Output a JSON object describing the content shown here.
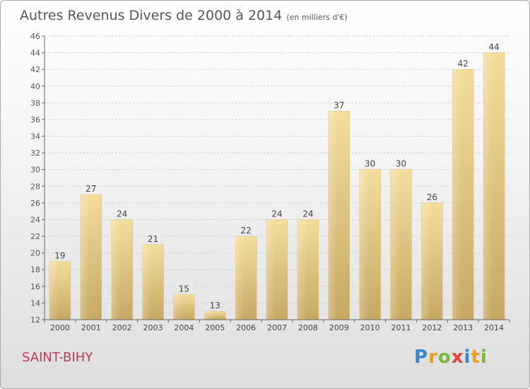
{
  "title": "Autres Revenus Divers de 2000 à 2014",
  "subtitle": "(en milliers d'€)",
  "place_name": "SAINT-BIHY",
  "logo": {
    "text": "Proxiti",
    "colors": [
      "#3a86c8",
      "#e8a020",
      "#7ab83a",
      "#e04040",
      "#3a86c8",
      "#e8a020",
      "#7ab83a"
    ]
  },
  "chart_data": {
    "type": "bar",
    "categories": [
      "2000",
      "2001",
      "2002",
      "2003",
      "2004",
      "2005",
      "2006",
      "2007",
      "2008",
      "2009",
      "2010",
      "2011",
      "2012",
      "2013",
      "2014"
    ],
    "values": [
      19,
      27,
      24,
      21,
      15,
      13,
      22,
      24,
      24,
      37,
      30,
      30,
      26,
      42,
      44
    ],
    "ylim": [
      12,
      46
    ],
    "yticks": [
      12,
      14,
      16,
      18,
      20,
      22,
      24,
      26,
      28,
      30,
      32,
      34,
      36,
      38,
      40,
      42,
      44,
      46
    ],
    "grid": true,
    "bar_color": "#e8cf8a",
    "bar_color_dark": "#c8ab64"
  }
}
